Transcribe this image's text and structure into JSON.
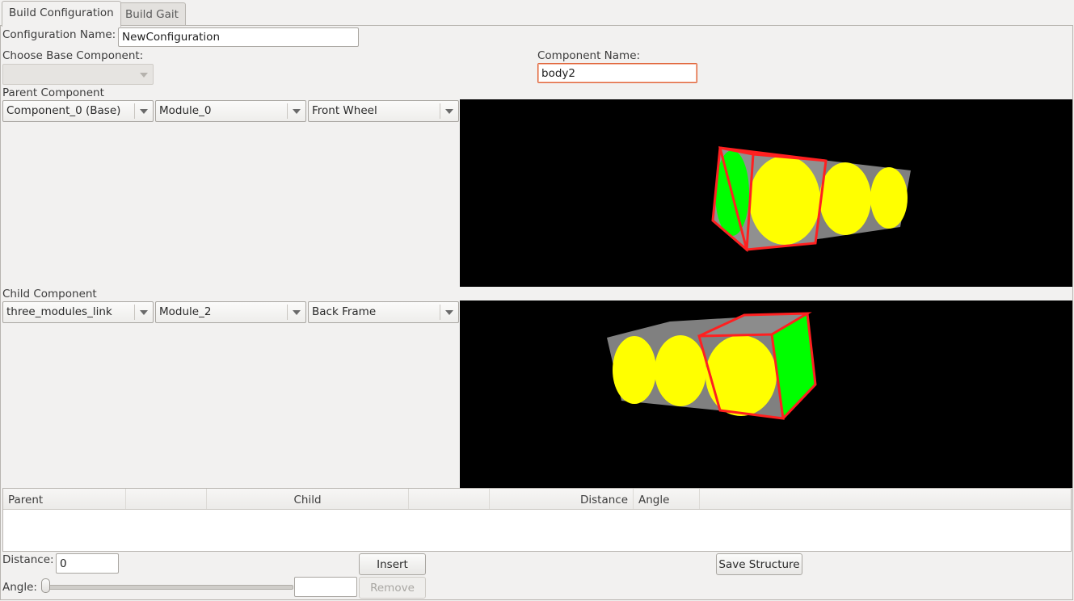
{
  "tabs": [
    {
      "label": "Build Configuration",
      "active": true
    },
    {
      "label": "Build Gait",
      "active": false
    }
  ],
  "config_name": {
    "label": "Configuration Name:",
    "value": "NewConfiguration"
  },
  "base_component": {
    "label": "Choose Base Component:",
    "value": ""
  },
  "component_name": {
    "label": "Component Name:",
    "value": "body2"
  },
  "parent": {
    "label": "Parent Component",
    "component": "Component_0 (Base)",
    "module": "Module_0",
    "node": "Front Wheel"
  },
  "child": {
    "label": "Child Component",
    "component": "three_modules_link",
    "module": "Module_2",
    "node": "Back Frame"
  },
  "table": {
    "headers": {
      "parent": "Parent",
      "child": "Child",
      "distance": "Distance",
      "angle": "Angle"
    },
    "rows": []
  },
  "distance": {
    "label": "Distance:",
    "value": "0"
  },
  "angle": {
    "label": "Angle:",
    "value": "",
    "slider_fraction": 0.0
  },
  "buttons": {
    "insert": "Insert",
    "remove": "Remove",
    "save": "Save Structure"
  },
  "colors": {
    "wheel": "#ffff00",
    "face": "#00ff00",
    "frame": "#ff0000",
    "body": "#808080",
    "viewport_bg": "#000000"
  }
}
